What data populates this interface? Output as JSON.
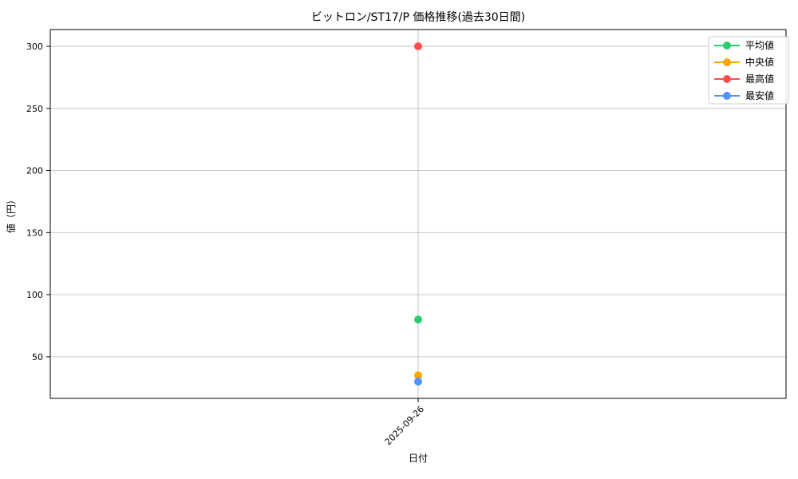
{
  "chart_data": {
    "type": "line",
    "title": "ビットロン/ST17/P 価格推移(過去30日間)",
    "xlabel": "日付",
    "ylabel": "値（円）",
    "x": [
      "2025-09-26"
    ],
    "series": [
      {
        "name": "平均値",
        "color": "#2ecc71",
        "values": [
          80
        ]
      },
      {
        "name": "中央値",
        "color": "#ffa502",
        "values": [
          35
        ]
      },
      {
        "name": "最高値",
        "color": "#ff4d4d",
        "values": [
          300
        ]
      },
      {
        "name": "最安値",
        "color": "#4d94ff",
        "values": [
          30
        ]
      }
    ],
    "ylim": [
      16.5,
      313.5
    ],
    "yticks": [
      50,
      100,
      150,
      200,
      250,
      300
    ],
    "grid": true,
    "grid_color": "#c0c0c0",
    "spine_color": "#000000",
    "legend_position": "upper right",
    "legend_border_color": "#cccccc",
    "marker": "circle",
    "marker_size": 5,
    "x_tick_rotation": -45
  }
}
